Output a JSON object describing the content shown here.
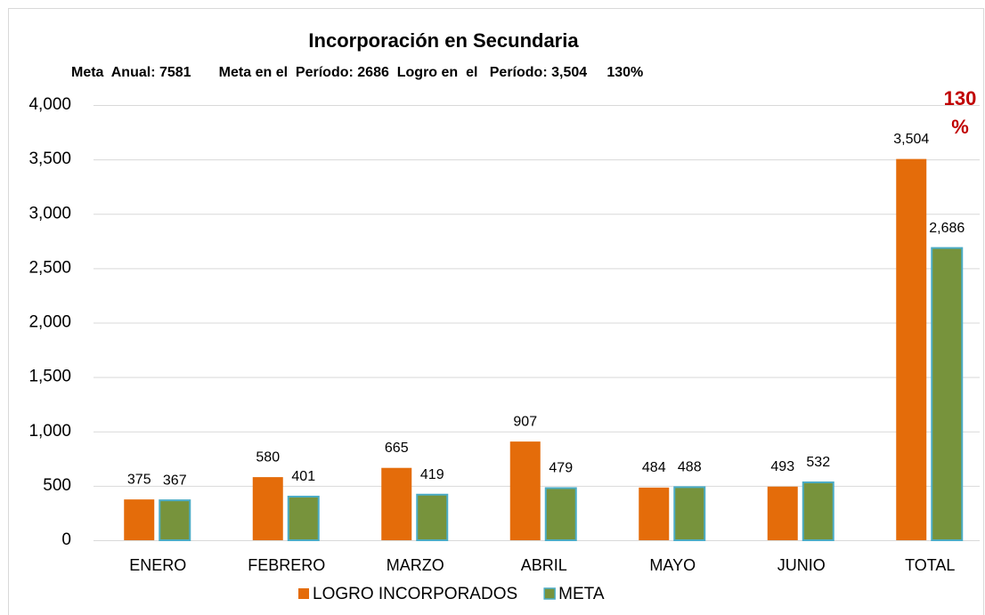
{
  "chart_data": {
    "type": "bar",
    "title": "Incorporación en  Secundaria",
    "subtitle": "Meta  Anual: 7581       Meta en el  Período: 2686  Logro en  el   Período: 3,504     130%",
    "annotations": [
      "130",
      "%"
    ],
    "categories": [
      "ENERO",
      "FEBRERO",
      "MARZO",
      "ABRIL",
      "MAYO",
      "JUNIO",
      "TOTAL"
    ],
    "series": [
      {
        "name": "LOGRO INCORPORADOS",
        "color": "#e46c0a",
        "values": [
          375,
          580,
          665,
          907,
          484,
          493,
          3504
        ],
        "value_labels": [
          "375",
          "580",
          "665",
          "907",
          "484",
          "493",
          "3,504"
        ]
      },
      {
        "name": "META",
        "color": "#77933c",
        "border": "#4bacc6",
        "values": [
          367,
          401,
          419,
          479,
          488,
          532,
          2686
        ],
        "value_labels": [
          "367",
          "401",
          "419",
          "479",
          "488",
          "532",
          "2,686"
        ]
      }
    ],
    "ylim": [
      0,
      4000
    ],
    "yticks": [
      0,
      500,
      {
        "value": 1000,
        "label": "1,000"
      },
      {
        "value": 1500,
        "label": "1,500"
      },
      {
        "value": 2000,
        "label": "2,000"
      },
      {
        "value": 2500,
        "label": "2,500"
      },
      {
        "value": 3000,
        "label": "3,000"
      },
      {
        "value": 3500,
        "label": "3,500"
      },
      {
        "value": 4000,
        "label": "4,000"
      }
    ],
    "grid": true,
    "legend": "bottom"
  }
}
